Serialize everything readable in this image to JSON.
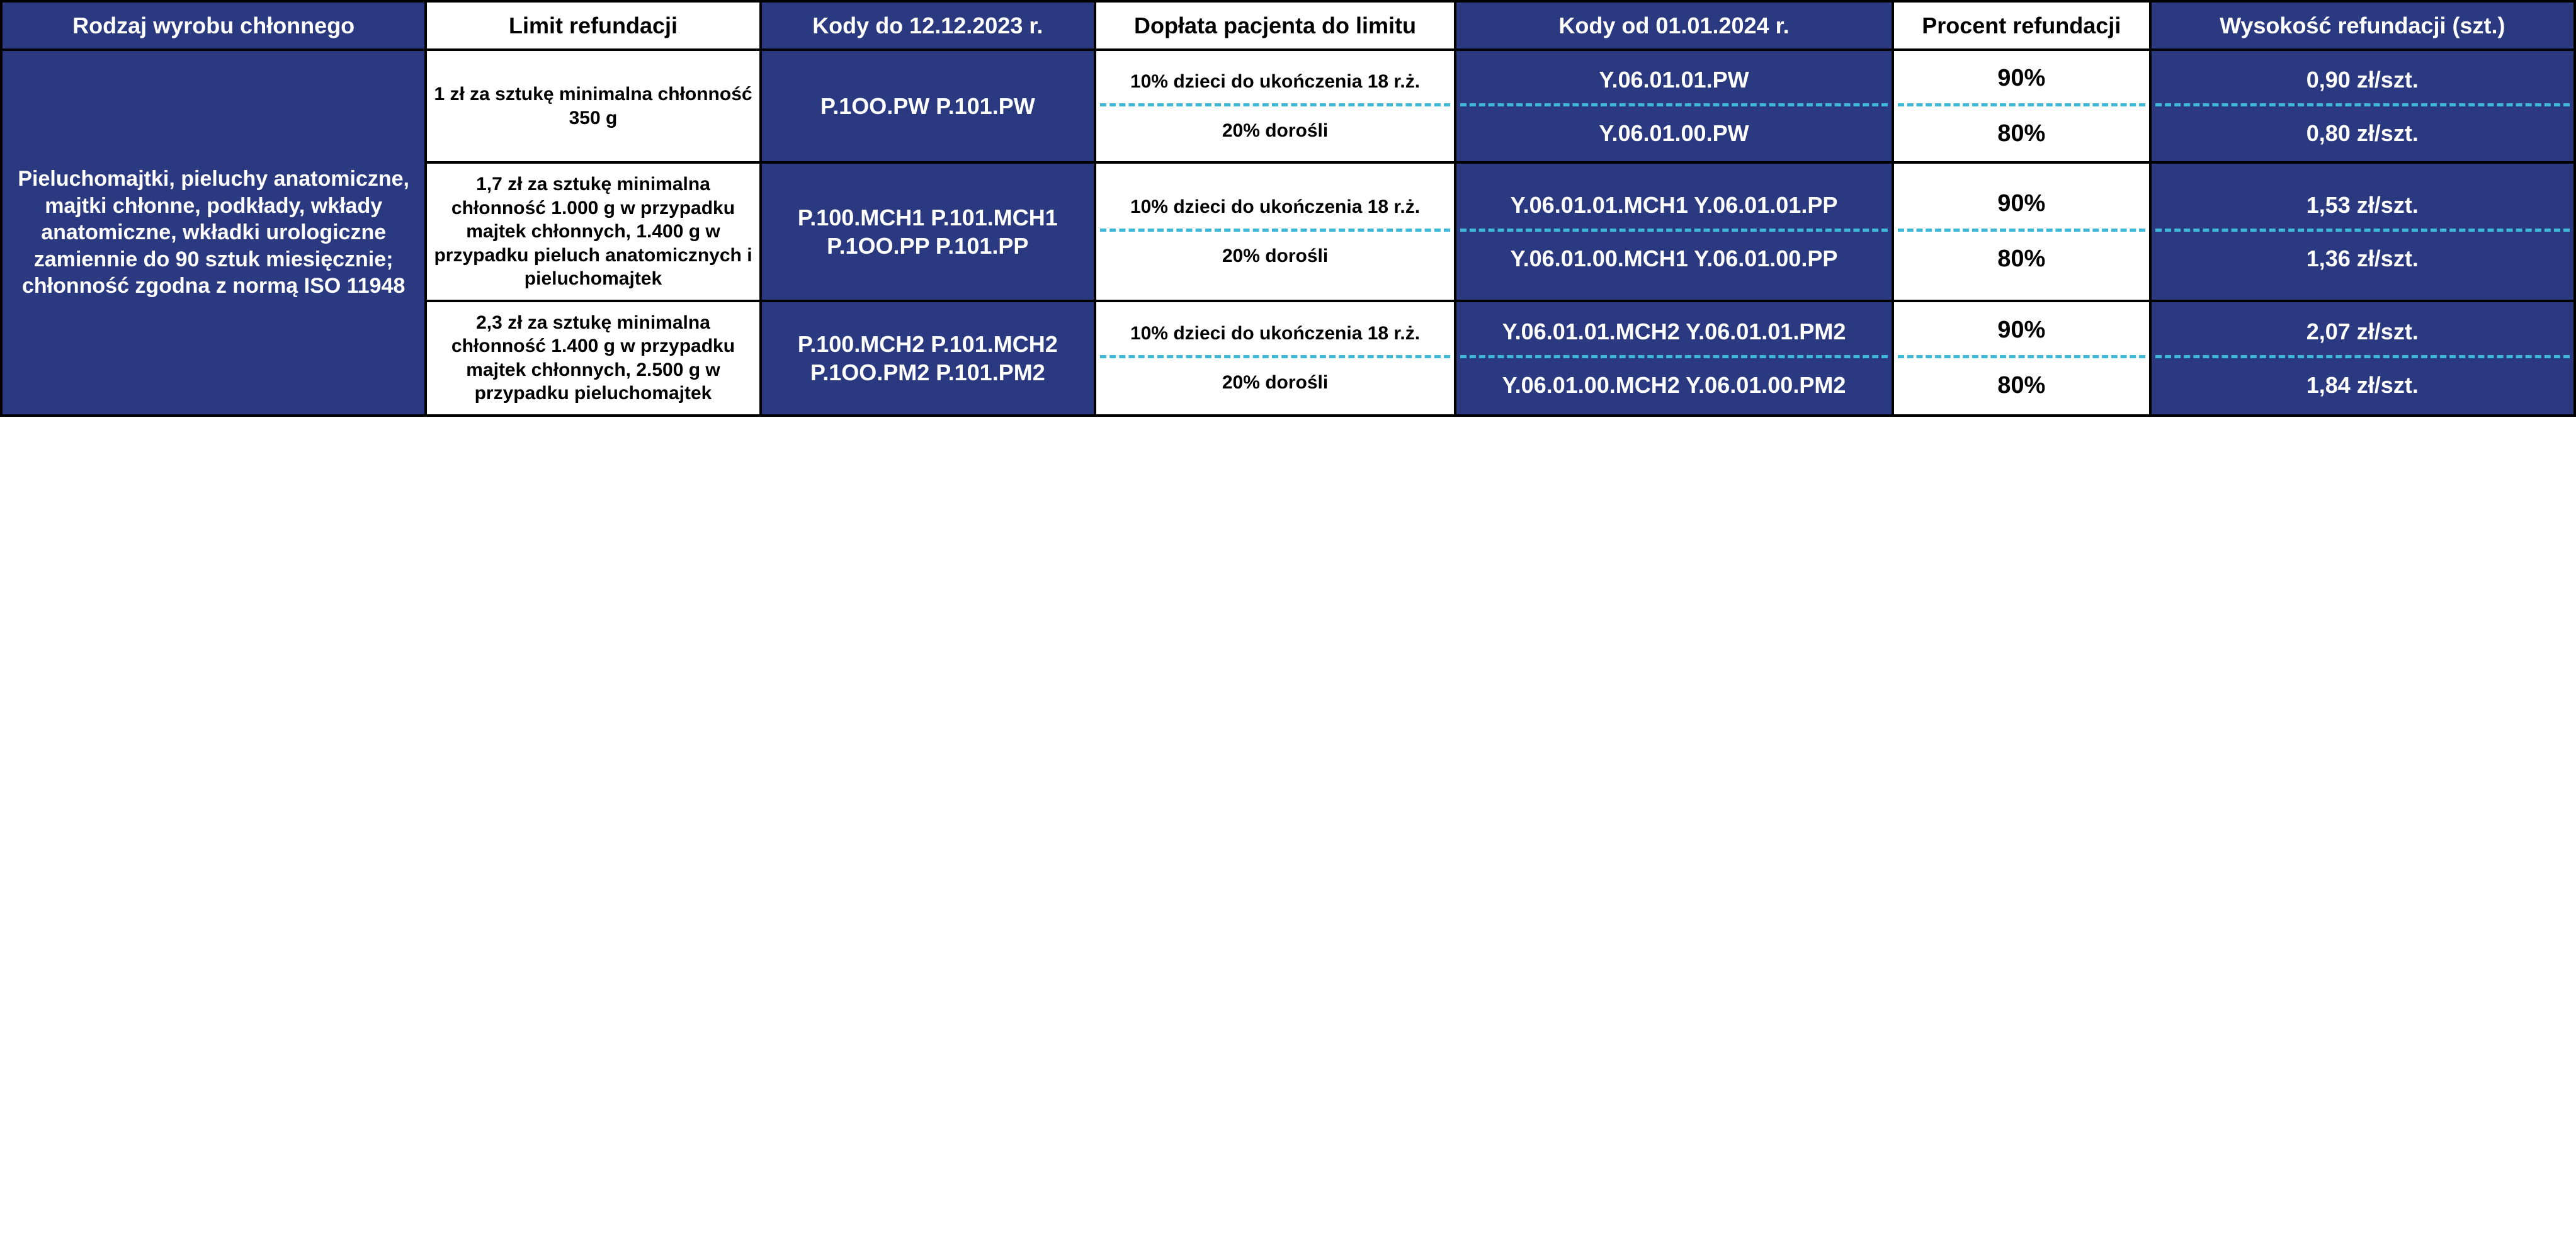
{
  "colors": {
    "blue_bg": "#2b3a80",
    "white_bg": "#ffffff",
    "text_white": "#ffffff",
    "text_black": "#000000",
    "dash": "#3fb8d8",
    "border": "#000000"
  },
  "headers": {
    "c1": "Rodzaj wyrobu chłonnego",
    "c2": "Limit refundacji",
    "c3": "Kody do 12.12.2023 r.",
    "c4": "Dopłata pacjenta do limitu",
    "c5": "Kody od 01.01.2024 r.",
    "c6": "Procent refundacji",
    "c7": "Wysokość refundacji (szt.)"
  },
  "row_category": "Pieluchomajtki, pieluchy anatomiczne, majtki chłonne, podkłady, wkłady anatomiczne, wkładki urologiczne zamiennie do 90 sztuk miesięcznie; chłonność zgodna z normą ISO 11948",
  "groups": [
    {
      "limit": "1 zł za sztukę minimalna chłonność 350 g",
      "old_codes": "P.1OO.PW P.101.PW",
      "sub": [
        {
          "doplata": "10% dzieci do ukończenia 18 r.ż.",
          "new_codes": "Y.06.01.01.PW",
          "pct": "90%",
          "amt": "0,90 zł/szt."
        },
        {
          "doplata": "20% dorośli",
          "new_codes": "Y.06.01.00.PW",
          "pct": "80%",
          "amt": "0,80 zł/szt."
        }
      ]
    },
    {
      "limit": "1,7 zł za sztukę minimalna chłonność 1.000 g w przypadku majtek chłonnych, 1.400 g w przypadku pieluch anatomicznych i pieluchomajtek",
      "old_codes": "P.100.MCH1 P.101.MCH1 P.1OO.PP P.101.PP",
      "sub": [
        {
          "doplata": "10% dzieci do ukończenia 18 r.ż.",
          "new_codes": "Y.06.01.01.MCH1 Y.06.01.01.PP",
          "pct": "90%",
          "amt": "1,53 zł/szt."
        },
        {
          "doplata": "20% dorośli",
          "new_codes": "Y.06.01.00.MCH1 Y.06.01.00.PP",
          "pct": "80%",
          "amt": "1,36 zł/szt."
        }
      ]
    },
    {
      "limit": "2,3 zł za sztukę minimalna chłonność 1.400 g w przypadku majtek chłonnych, 2.500 g w przypadku pieluchomajtek",
      "old_codes": "P.100.MCH2 P.101.MCH2 P.1OO.PM2 P.101.PM2",
      "sub": [
        {
          "doplata": "10% dzieci do ukończenia 18 r.ż.",
          "new_codes": "Y.06.01.01.MCH2 Y.06.01.01.PM2",
          "pct": "90%",
          "amt": "2,07 zł/szt."
        },
        {
          "doplata": "20% dorośli",
          "new_codes": "Y.06.01.00.MCH2 Y.06.01.00.PM2",
          "pct": "80%",
          "amt": "1,84 zł/szt."
        }
      ]
    }
  ]
}
